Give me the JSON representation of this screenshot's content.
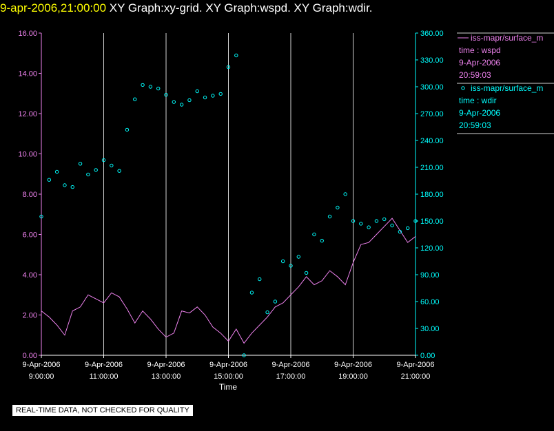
{
  "title": {
    "timestamp": "9-apr-2006,21:00:00",
    "graphs": "XY Graph:xy-grid.  XY Graph:wspd.  XY Graph:wdir."
  },
  "qc_note": "REAL-TIME DATA, NOT CHECKED FOR QUALITY",
  "colors": {
    "wspd": "#ee82ee",
    "wdir": "#00ffff",
    "axis_text": "#ffffff",
    "grid": "#d3d3d3"
  },
  "chart_data": {
    "type": "line",
    "xlabel": "Time",
    "xlim": [
      9,
      21
    ],
    "x_ticks": [
      9,
      11,
      13,
      15,
      17,
      19,
      21
    ],
    "x_tick_labels": [
      [
        "9-Apr-2006",
        "9:00:00"
      ],
      [
        "9-Apr-2006",
        "11:00:00"
      ],
      [
        "9-Apr-2006",
        "13:00:00"
      ],
      [
        "9-Apr-2006",
        "15:00:00"
      ],
      [
        "9-Apr-2006",
        "17:00:00"
      ],
      [
        "9-Apr-2006",
        "19:00:00"
      ],
      [
        "9-Apr-2006",
        "21:00:00"
      ]
    ],
    "y_left": {
      "ylim": [
        0,
        16
      ],
      "ticks": [
        "0.00",
        "2.00",
        "4.00",
        "6.00",
        "8.00",
        "10.00",
        "12.00",
        "14.00",
        "16.00"
      ]
    },
    "y_right": {
      "ylim": [
        0,
        360
      ],
      "ticks": [
        "0.00",
        "30.00",
        "60.00",
        "90.00",
        "120.00",
        "150.00",
        "180.00",
        "210.00",
        "240.00",
        "270.00",
        "300.00",
        "330.00",
        "360.00"
      ]
    },
    "grid": "vertical",
    "legend_position": "right",
    "series": [
      {
        "name": "wspd",
        "style": "line",
        "axis": "left",
        "legend": {
          "label": "iss-mapr/surface_m",
          "field": "time : wspd",
          "date": "9-Apr-2006",
          "time": "20:59:03"
        },
        "x": [
          9,
          9.25,
          9.5,
          9.75,
          10,
          10.25,
          10.5,
          10.75,
          11,
          11.25,
          11.5,
          11.75,
          12,
          12.25,
          12.5,
          12.75,
          13,
          13.25,
          13.5,
          13.75,
          14,
          14.25,
          14.5,
          14.75,
          15,
          15.25,
          15.5,
          15.75,
          16,
          16.25,
          16.5,
          16.75,
          17,
          17.25,
          17.5,
          17.75,
          18,
          18.25,
          18.5,
          18.75,
          19,
          19.25,
          19.5,
          19.75,
          20,
          20.25,
          20.5,
          20.75,
          21
        ],
        "y": [
          2.2,
          1.9,
          1.5,
          1.0,
          2.2,
          2.4,
          3.0,
          2.8,
          2.6,
          3.1,
          2.9,
          2.3,
          1.6,
          2.2,
          1.8,
          1.3,
          0.9,
          1.1,
          2.2,
          2.1,
          2.4,
          2.0,
          1.4,
          1.1,
          0.7,
          1.3,
          0.6,
          1.1,
          1.5,
          1.9,
          2.4,
          2.6,
          3.0,
          3.4,
          3.9,
          3.5,
          3.7,
          4.2,
          3.9,
          3.5,
          4.6,
          5.5,
          5.6,
          6.0,
          6.4,
          6.8,
          6.2,
          5.6,
          5.9
        ]
      },
      {
        "name": "wdir",
        "style": "markers",
        "axis": "right",
        "legend": {
          "label": "iss-mapr/surface_m",
          "field": "time : wdir",
          "date": "9-Apr-2006",
          "time": "20:59:03"
        },
        "x": [
          9,
          9.25,
          9.5,
          9.75,
          10,
          10.25,
          10.5,
          10.75,
          11,
          11.25,
          11.5,
          11.75,
          12,
          12.25,
          12.5,
          12.75,
          13,
          13.25,
          13.5,
          13.75,
          14,
          14.25,
          14.5,
          14.75,
          15,
          15.25,
          15.5,
          15.75,
          16,
          16.25,
          16.5,
          16.75,
          17,
          17.25,
          17.5,
          17.75,
          18,
          18.25,
          18.5,
          18.75,
          19,
          19.25,
          19.5,
          19.75,
          20,
          20.25,
          20.5,
          20.75,
          21
        ],
        "y": [
          155,
          196,
          205,
          190,
          188,
          214,
          202,
          207,
          218,
          212,
          206,
          252,
          286,
          302,
          300,
          298,
          291,
          283,
          280,
          285,
          295,
          288,
          290,
          292,
          322,
          335,
          0,
          70,
          85,
          48,
          60,
          105,
          100,
          110,
          92,
          135,
          128,
          155,
          165,
          180,
          150,
          147,
          143,
          150,
          152,
          145,
          138,
          142,
          150
        ]
      }
    ]
  }
}
